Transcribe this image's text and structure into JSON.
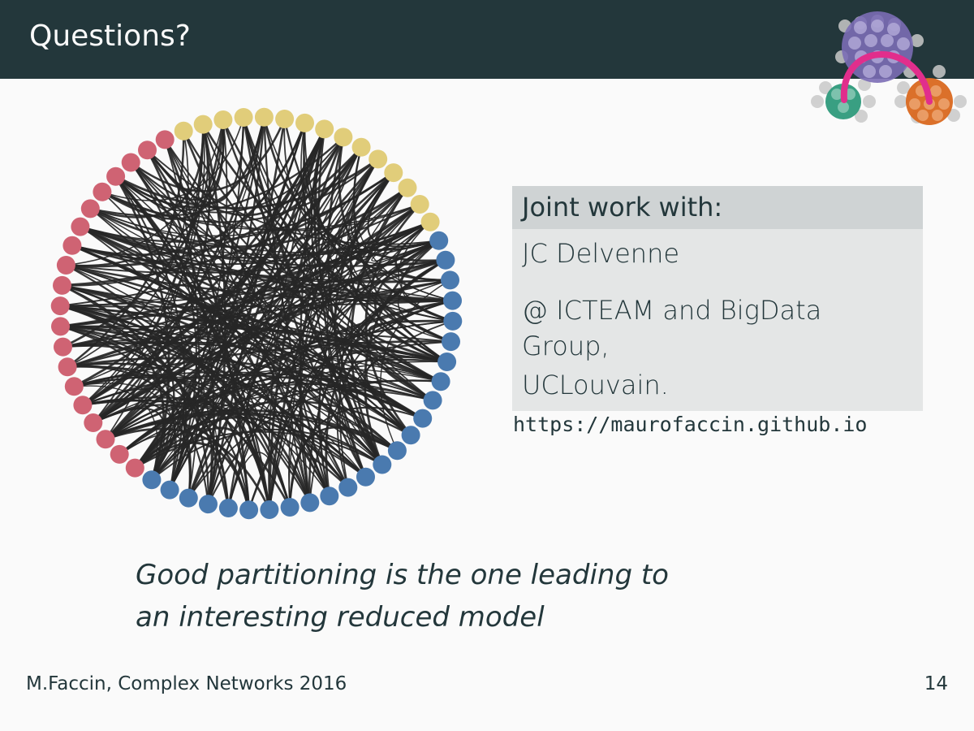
{
  "slide": {
    "title": "Questions?",
    "page_number": "14",
    "footer": "M.Faccin, Complex Networks 2016"
  },
  "info_box": {
    "heading": "Joint work with:",
    "name": "JC Delvenne",
    "affiliation_line1": "@ ICTEAM and BigData Group,",
    "affiliation_line2": "UCLouvain."
  },
  "url": "https://maurofaccin.github.io",
  "quote": {
    "line1": "Good partitioning is the one leading to",
    "line2": "an interesting reduced model"
  },
  "colors": {
    "header_bg": "#23373b",
    "background": "#fafafa",
    "node_yellow": "#e1cd7a",
    "node_blue": "#4a7aaf",
    "node_red": "#cf6373",
    "edge": "#262626",
    "logo_purple": "#7b6db5",
    "logo_green": "#2e9a7b",
    "logo_orange": "#d9681f",
    "logo_arc": "#e12e8c"
  },
  "network": {
    "node_groups": [
      {
        "color": "yellow",
        "count": 15
      },
      {
        "color": "blue",
        "count": 25
      },
      {
        "color": "red",
        "count": 20
      }
    ]
  }
}
